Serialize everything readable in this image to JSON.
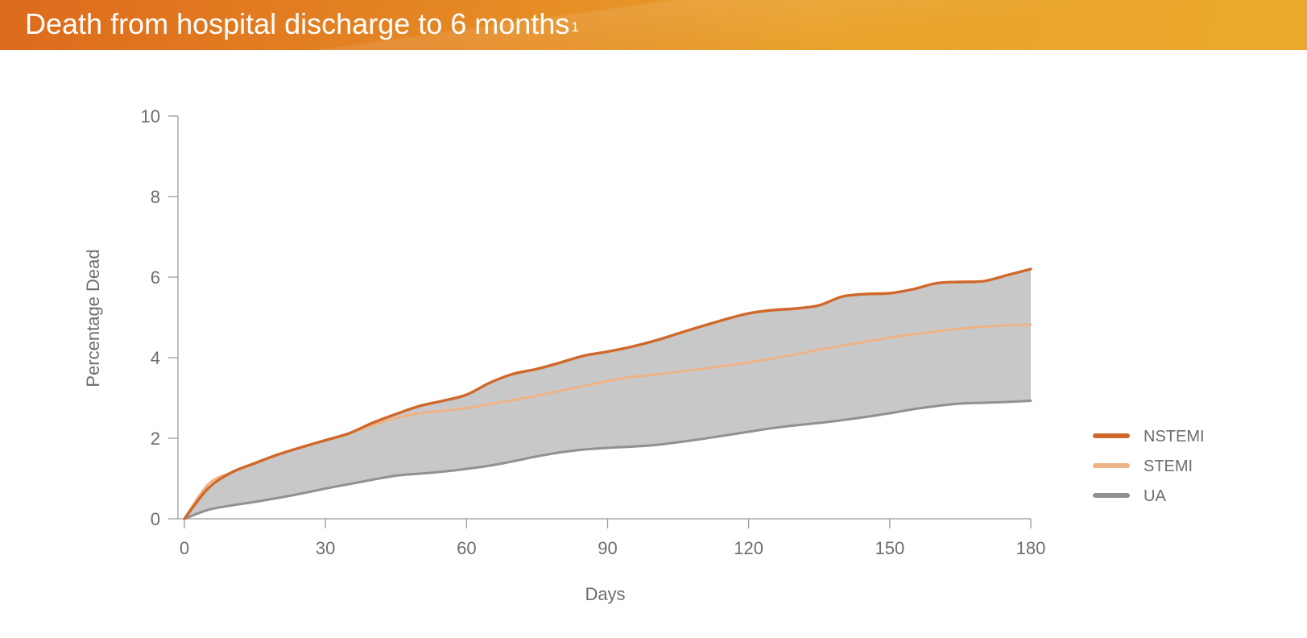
{
  "header": {
    "title": "Death from hospital discharge to 6 months",
    "title_superscript": "1"
  },
  "colors": {
    "banner_start": "#dd6a1d",
    "banner_end": "#eaa92c",
    "area_fill": "#c8c8c8",
    "axis": "#9a9a9a",
    "text": "#6d6d6d"
  },
  "chart_data": {
    "type": "area",
    "xlabel": "Days",
    "ylabel": "Percentage Dead",
    "xlim": [
      0,
      180
    ],
    "ylim": [
      0,
      10
    ],
    "x_ticks": [
      "0",
      "30",
      "60",
      "90",
      "120",
      "150",
      "180"
    ],
    "y_ticks": [
      "0",
      "2",
      "4",
      "6",
      "8",
      "10"
    ],
    "grid": false,
    "legend_position": "right",
    "fill_between": [
      "NSTEMI",
      "UA"
    ],
    "x": [
      0,
      5,
      10,
      15,
      20,
      25,
      30,
      35,
      40,
      45,
      50,
      55,
      60,
      65,
      70,
      75,
      80,
      85,
      90,
      95,
      100,
      105,
      110,
      115,
      120,
      125,
      130,
      135,
      140,
      145,
      150,
      155,
      160,
      165,
      170,
      175,
      180
    ],
    "series": [
      {
        "name": "NSTEMI",
        "color": "#d0682a",
        "values": [
          0.0,
          0.75,
          1.15,
          1.38,
          1.6,
          1.78,
          1.95,
          2.12,
          2.38,
          2.6,
          2.8,
          2.93,
          3.08,
          3.38,
          3.6,
          3.72,
          3.88,
          4.05,
          4.15,
          4.27,
          4.42,
          4.6,
          4.78,
          4.95,
          5.1,
          5.18,
          5.22,
          5.3,
          5.52,
          5.58,
          5.6,
          5.7,
          5.85,
          5.88,
          5.9,
          6.05,
          6.2
        ]
      },
      {
        "name": "STEMI",
        "color": "#edb387",
        "values": [
          0.0,
          0.85,
          1.15,
          1.38,
          1.6,
          1.78,
          1.95,
          2.12,
          2.32,
          2.5,
          2.62,
          2.68,
          2.75,
          2.85,
          2.95,
          3.05,
          3.18,
          3.3,
          3.42,
          3.52,
          3.58,
          3.65,
          3.72,
          3.8,
          3.88,
          3.98,
          4.08,
          4.2,
          4.3,
          4.4,
          4.5,
          4.58,
          4.65,
          4.72,
          4.77,
          4.8,
          4.82
        ]
      },
      {
        "name": "UA",
        "color": "#919191",
        "values": [
          0.0,
          0.22,
          0.33,
          0.42,
          0.52,
          0.63,
          0.75,
          0.86,
          0.97,
          1.07,
          1.12,
          1.17,
          1.24,
          1.32,
          1.43,
          1.55,
          1.65,
          1.72,
          1.76,
          1.79,
          1.83,
          1.9,
          1.98,
          2.07,
          2.16,
          2.25,
          2.32,
          2.38,
          2.45,
          2.53,
          2.62,
          2.72,
          2.8,
          2.86,
          2.88,
          2.9,
          2.93
        ]
      }
    ]
  }
}
